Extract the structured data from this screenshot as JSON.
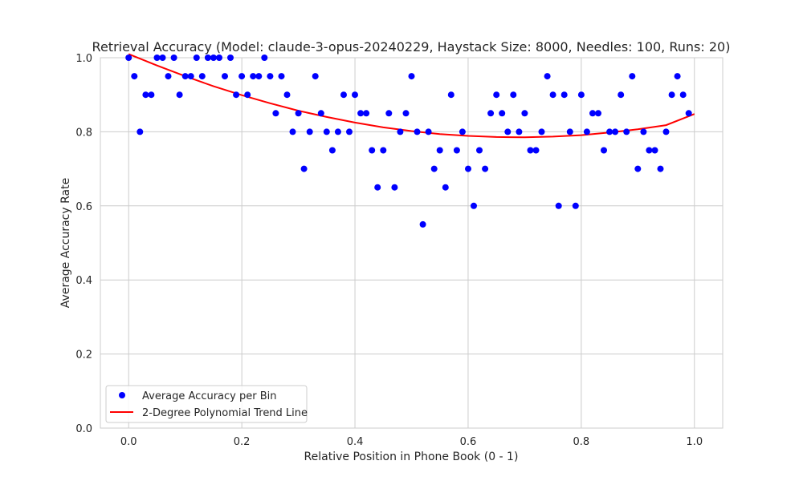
{
  "chart_data": {
    "type": "scatter",
    "title": "Retrieval Accuracy (Model: claude-3-opus-20240229, Haystack Size: 8000, Needles: 100, Runs: 20)",
    "xlabel": "Relative Position in Phone Book (0 - 1)",
    "ylabel": "Average Accuracy Rate",
    "xlim": [
      -0.05,
      1.05
    ],
    "ylim": [
      0.0,
      1.0
    ],
    "xticks": [
      "0.0",
      "0.2",
      "0.4",
      "0.6",
      "0.8",
      "1.0"
    ],
    "yticks": [
      "0.0",
      "0.2",
      "0.4",
      "0.6",
      "0.8",
      "1.0"
    ],
    "grid": true,
    "legend_position": "lower-left",
    "series": [
      {
        "name": "Average Accuracy per Bin",
        "kind": "scatter",
        "color": "#0000ff",
        "x": [
          0.0,
          0.01,
          0.02,
          0.03,
          0.04,
          0.05,
          0.06,
          0.07,
          0.08,
          0.09,
          0.1,
          0.11,
          0.12,
          0.13,
          0.14,
          0.15,
          0.16,
          0.17,
          0.18,
          0.19,
          0.2,
          0.21,
          0.22,
          0.23,
          0.24,
          0.25,
          0.26,
          0.27,
          0.28,
          0.29,
          0.3,
          0.31,
          0.32,
          0.33,
          0.34,
          0.35,
          0.36,
          0.37,
          0.38,
          0.39,
          0.4,
          0.41,
          0.42,
          0.43,
          0.44,
          0.45,
          0.46,
          0.47,
          0.48,
          0.49,
          0.5,
          0.51,
          0.52,
          0.53,
          0.54,
          0.55,
          0.56,
          0.57,
          0.58,
          0.59,
          0.6,
          0.61,
          0.62,
          0.63,
          0.64,
          0.65,
          0.66,
          0.67,
          0.68,
          0.69,
          0.7,
          0.71,
          0.72,
          0.73,
          0.74,
          0.75,
          0.76,
          0.77,
          0.78,
          0.79,
          0.8,
          0.81,
          0.82,
          0.83,
          0.84,
          0.85,
          0.86,
          0.87,
          0.88,
          0.89,
          0.9,
          0.91,
          0.92,
          0.93,
          0.94,
          0.95,
          0.96,
          0.97,
          0.98,
          0.99
        ],
        "y": [
          1.0,
          0.95,
          0.8,
          0.9,
          0.9,
          1.0,
          1.0,
          0.95,
          1.0,
          0.9,
          0.95,
          0.95,
          1.0,
          0.95,
          1.0,
          1.0,
          1.0,
          0.95,
          1.0,
          0.9,
          0.95,
          0.9,
          0.95,
          0.95,
          1.0,
          0.95,
          0.85,
          0.95,
          0.9,
          0.8,
          0.85,
          0.7,
          0.8,
          0.95,
          0.85,
          0.8,
          0.75,
          0.8,
          0.9,
          0.8,
          0.9,
          0.85,
          0.85,
          0.75,
          0.65,
          0.75,
          0.85,
          0.65,
          0.8,
          0.85,
          0.95,
          0.8,
          0.55,
          0.8,
          0.7,
          0.75,
          0.65,
          0.9,
          0.75,
          0.8,
          0.7,
          0.6,
          0.75,
          0.7,
          0.85,
          0.9,
          0.85,
          0.8,
          0.9,
          0.8,
          0.85,
          0.75,
          0.75,
          0.8,
          0.95,
          0.9,
          0.6,
          0.9,
          0.8,
          0.6,
          0.9,
          0.8,
          0.85,
          0.85,
          0.75,
          0.8,
          0.8,
          0.9,
          0.8,
          0.95,
          0.7,
          0.8,
          0.75,
          0.75,
          0.7,
          0.8,
          0.9,
          0.95,
          0.9,
          0.85
        ]
      },
      {
        "name": "2-Degree Polynomial Trend Line",
        "kind": "line",
        "color": "#ff0000",
        "x": [
          0.0,
          0.05,
          0.1,
          0.15,
          0.2,
          0.25,
          0.3,
          0.35,
          0.4,
          0.45,
          0.5,
          0.55,
          0.6,
          0.65,
          0.7,
          0.75,
          0.8,
          0.85,
          0.9,
          0.95,
          1.0
        ],
        "y": [
          1.01,
          0.979,
          0.95,
          0.923,
          0.899,
          0.877,
          0.857,
          0.84,
          0.825,
          0.812,
          0.802,
          0.794,
          0.789,
          0.786,
          0.785,
          0.787,
          0.791,
          0.798,
          0.807,
          0.818,
          0.848
        ]
      }
    ]
  }
}
